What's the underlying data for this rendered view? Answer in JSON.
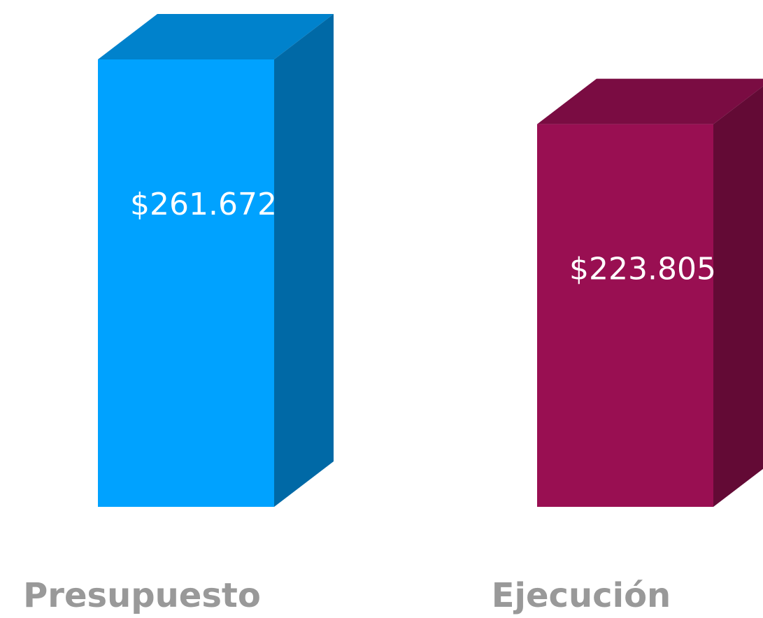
{
  "chart_data": {
    "type": "bar3d",
    "categories": [
      "Presupuesto",
      "Ejecución"
    ],
    "values": [
      261672,
      223805
    ],
    "value_labels": [
      "$261.672",
      "$223.805"
    ],
    "colors": [
      "#00a2ff",
      "#990f52"
    ]
  }
}
